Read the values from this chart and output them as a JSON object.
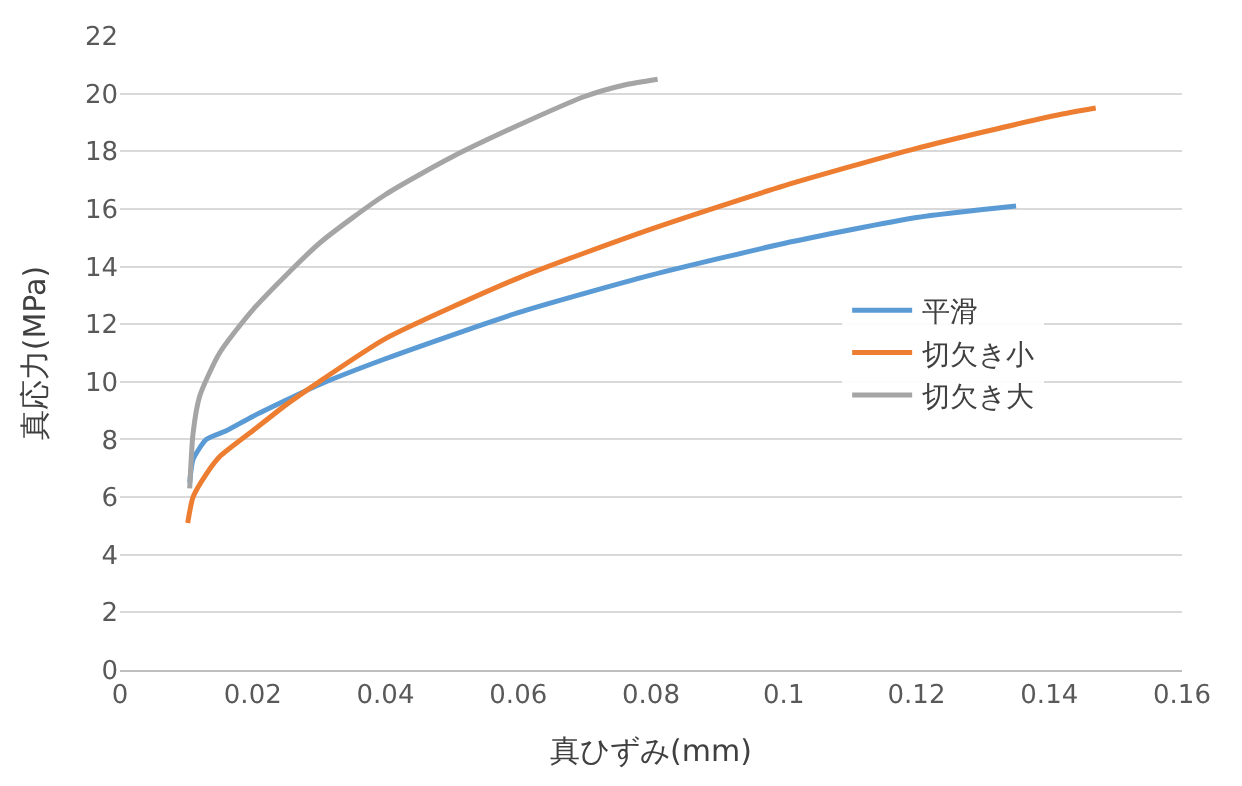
{
  "chart_data": {
    "type": "line",
    "xlabel": "真ひずみ(mm)",
    "ylabel": "真応力(MPa)",
    "xlim": [
      0,
      0.16
    ],
    "xticks": [
      {
        "value": 0,
        "label": "0"
      },
      {
        "value": 0.02,
        "label": "0.02"
      },
      {
        "value": 0.04,
        "label": "0.04"
      },
      {
        "value": 0.06,
        "label": "0.06"
      },
      {
        "value": 0.08,
        "label": "0.08"
      },
      {
        "value": 0.1,
        "label": "0.1"
      },
      {
        "value": 0.12,
        "label": "0.12"
      },
      {
        "value": 0.14,
        "label": "0.14"
      },
      {
        "value": 0.16,
        "label": "0.16"
      }
    ],
    "ylim": [
      0,
      22
    ],
    "yticks": [
      0,
      2,
      4,
      6,
      8,
      10,
      12,
      14,
      16,
      18,
      20,
      22
    ],
    "grid": "y",
    "legend": "right",
    "marker": "none",
    "line_style": "solid",
    "series": [
      {
        "name": "平滑",
        "color": "#5b9bd5",
        "x": [
          0.0105,
          0.011,
          0.013,
          0.016,
          0.02,
          0.03,
          0.04,
          0.06,
          0.08,
          0.1,
          0.12,
          0.135
        ],
        "values": [
          6.5,
          7.3,
          8.0,
          8.3,
          8.8,
          9.9,
          10.8,
          12.4,
          13.7,
          14.8,
          15.7,
          16.1
        ]
      },
      {
        "name": "切欠き小",
        "color": "#ed7d31",
        "x": [
          0.0102,
          0.011,
          0.013,
          0.015,
          0.02,
          0.025,
          0.03,
          0.04,
          0.06,
          0.08,
          0.1,
          0.12,
          0.14,
          0.147
        ],
        "values": [
          5.1,
          6.0,
          6.8,
          7.4,
          8.3,
          9.2,
          10.0,
          11.5,
          13.6,
          15.3,
          16.8,
          18.1,
          19.2,
          19.5
        ]
      },
      {
        "name": "切欠き大",
        "color": "#a5a5a5",
        "x": [
          0.0105,
          0.011,
          0.012,
          0.015,
          0.02,
          0.03,
          0.04,
          0.05,
          0.06,
          0.07,
          0.076,
          0.081
        ],
        "values": [
          6.3,
          8.2,
          9.5,
          11.0,
          12.5,
          14.8,
          16.5,
          17.8,
          18.9,
          19.9,
          20.3,
          20.5
        ]
      }
    ]
  }
}
